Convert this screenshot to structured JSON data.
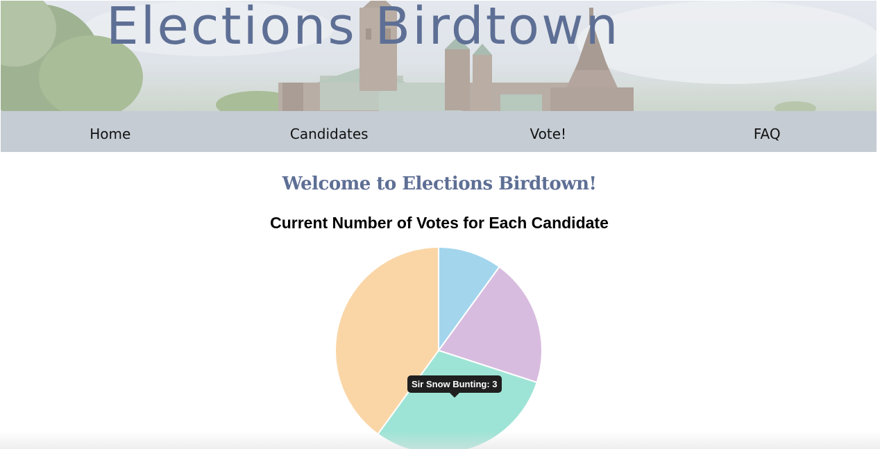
{
  "header": {
    "title": "Elections Birdtown",
    "banner_image": "parliament-buildings-photo"
  },
  "nav": {
    "items": [
      {
        "label": "Home"
      },
      {
        "label": "Candidates"
      },
      {
        "label": "Vote!"
      },
      {
        "label": "FAQ"
      }
    ]
  },
  "main": {
    "welcome": "Welcome to Elections Birdtown!",
    "chart_title": "Current Number of Votes for Each Candidate"
  },
  "tooltip": {
    "text": "Sir Snow Bunting: 3"
  },
  "colors": {
    "title_blue": "#5e6f95",
    "nav_bg": "#c5ccd3",
    "slice_blue": "#a3d6ed",
    "slice_purple": "#d8bcdf",
    "slice_teal": "#9ee4d6",
    "slice_orange": "#fad6a7"
  },
  "chart_data": {
    "type": "pie",
    "title": "Current Number of Votes for Each Candidate",
    "slices": [
      {
        "label": "",
        "value": 1,
        "color": "#a3d6ed"
      },
      {
        "label": "",
        "value": 2,
        "color": "#d8bcdf"
      },
      {
        "label": "Sir Snow Bunting",
        "value": 3,
        "color": "#9ee4d6"
      },
      {
        "label": "",
        "value": 4,
        "color": "#fad6a7"
      }
    ],
    "legend": "none"
  }
}
